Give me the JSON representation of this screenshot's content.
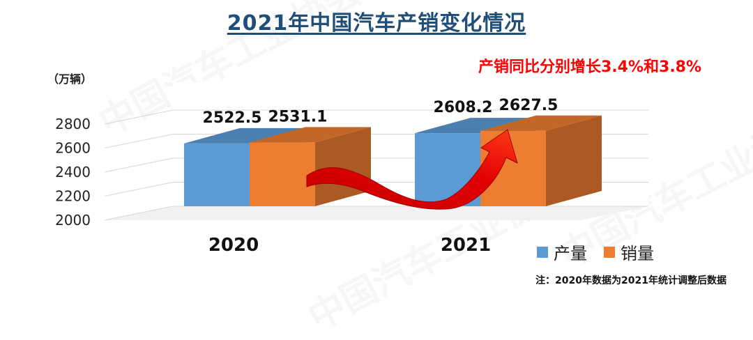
{
  "title": "2021年中国汽车产销变化情况",
  "highlight_text": "产销同比分别增长3.4%和3.8%",
  "unit_label": "（万辆）",
  "note": "注：2020年数据为2021年统计调整后数据",
  "watermark": "中国汽车工业协会",
  "colors": {
    "production": "#5b9bd5",
    "sales": "#ed7d31",
    "arrow": "#e00000",
    "title": "#1f4e79"
  },
  "chart_data": {
    "type": "bar",
    "categories": [
      "2020",
      "2021"
    ],
    "series": [
      {
        "name": "产量",
        "values": [
          2522.5,
          2608.2
        ]
      },
      {
        "name": "销量",
        "values": [
          2531.1,
          2627.5
        ]
      }
    ],
    "data_labels": [
      [
        "2522.5",
        "2531.1"
      ],
      [
        "2608.2",
        "2627.5"
      ]
    ],
    "yticks": [
      "2800",
      "2600",
      "2400",
      "2200",
      "2000"
    ],
    "ylim": [
      2000,
      2800
    ],
    "grid": true,
    "legend_position": "bottom-right"
  }
}
